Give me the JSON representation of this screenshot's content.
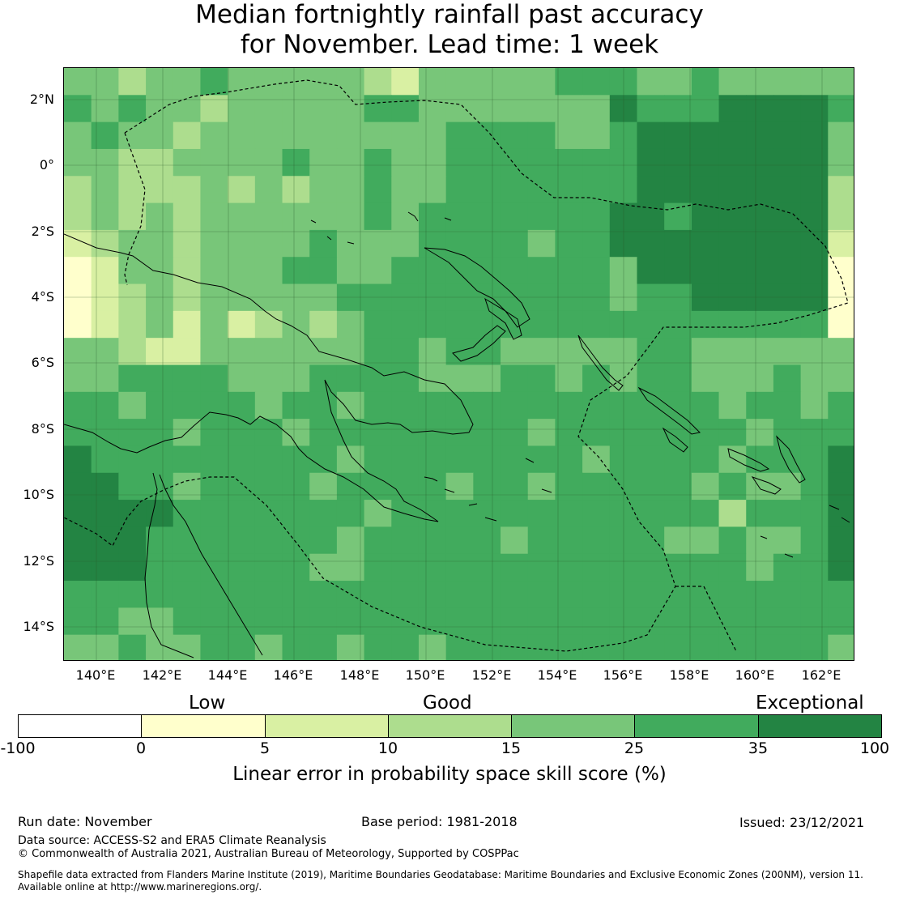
{
  "title": {
    "line1": "Median fortnightly rainfall past accuracy",
    "line2": "for November. Lead time: 1 week"
  },
  "map": {
    "lat_labels": [
      "2°N",
      "0°",
      "2°S",
      "4°S",
      "6°S",
      "8°S",
      "10°S",
      "12°S",
      "14°S"
    ],
    "lon_labels": [
      "140°E",
      "142°E",
      "144°E",
      "146°E",
      "148°E",
      "150°E",
      "152°E",
      "154°E",
      "156°E",
      "158°E",
      "160°E",
      "162°E"
    ]
  },
  "legend": {
    "categories": [
      "Low",
      "Good",
      "Exceptional"
    ],
    "ticks": [
      "-100",
      "0",
      "5",
      "10",
      "15",
      "25",
      "35",
      "100"
    ],
    "colors": [
      "#ffffff",
      "#ffffcc",
      "#d9f0a3",
      "#addd8e",
      "#78c679",
      "#41ab5d",
      "#238443"
    ],
    "title": "Linear error in probability space skill score (%)"
  },
  "footer": {
    "run_date": "Run date: November",
    "base_period": "Base period: 1981-2018",
    "issued": "Issued: 23/12/2021",
    "data_source": "Data source: ACCESS-S2 and ERA5 Climate Reanalysis",
    "copyright": "© Commonwealth of Australia 2021, Australian Bureau of Meteorology, Supported by COSPPac",
    "shapefile_line1": "Shapefile data extracted from Flanders Marine Institute (2019), Maritime Boundaries Geodatabase: Maritime Boundaries and Exclusive Economic Zones (200NM), version 11.",
    "shapefile_line2": "Available online at http://www.marineregions.org/."
  }
}
